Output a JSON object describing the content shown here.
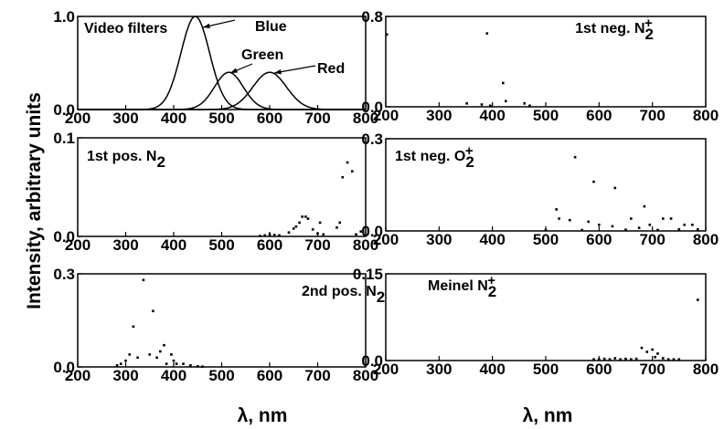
{
  "figure": {
    "ylabel": "Intensity, arbitrary units",
    "xlabel": "λ, nm"
  },
  "chart_data": [
    {
      "id": "video",
      "type": "line",
      "label_parts": [
        {
          "t": "Video filters"
        }
      ],
      "x_ticks": [
        200,
        300,
        400,
        500,
        600,
        700,
        800
      ],
      "xlim": [
        200,
        800
      ],
      "y_ticks": [
        "0.0",
        "1.0"
      ],
      "ylim": [
        0,
        1.0
      ],
      "series": [
        {
          "name": "Blue",
          "center": 445,
          "width": 30,
          "peak": 1.0
        },
        {
          "name": "Green",
          "center": 515,
          "width": 30,
          "peak": 0.4
        },
        {
          "name": "Red",
          "center": 600,
          "width": 35,
          "peak": 0.4
        }
      ]
    },
    {
      "id": "n2p",
      "type": "scatter",
      "label_parts": [
        {
          "t": "1st neg. N"
        },
        {
          "t": "2",
          "sub": true
        },
        {
          "t": "+",
          "sup": true
        }
      ],
      "x_ticks": [
        200,
        300,
        400,
        500,
        600,
        700,
        800
      ],
      "xlim": [
        200,
        800
      ],
      "y_ticks": [
        "0.0",
        "0.8"
      ],
      "ylim": [
        0,
        0.8
      ],
      "points": [
        [
          202,
          0.64
        ],
        [
          352,
          0.03
        ],
        [
          380,
          0.02
        ],
        [
          390,
          0.65
        ],
        [
          396,
          0.01
        ],
        [
          420,
          0.21
        ],
        [
          425,
          0.05
        ],
        [
          460,
          0.03
        ],
        [
          470,
          0.01
        ]
      ]
    },
    {
      "id": "n2_1p",
      "type": "scatter",
      "label_parts": [
        {
          "t": "1st pos. N"
        },
        {
          "t": "2",
          "sub": true
        }
      ],
      "x_ticks": [
        200,
        300,
        400,
        500,
        600,
        700,
        800
      ],
      "xlim": [
        200,
        800
      ],
      "y_ticks": [
        "0.0",
        "0.1"
      ],
      "ylim": [
        0,
        0.1
      ],
      "points": [
        [
          580,
          0.0005
        ],
        [
          590,
          0.001
        ],
        [
          600,
          0.002
        ],
        [
          610,
          0.0015
        ],
        [
          620,
          0.001
        ],
        [
          640,
          0.004
        ],
        [
          650,
          0.008
        ],
        [
          655,
          0.01
        ],
        [
          662,
          0.014
        ],
        [
          668,
          0.02
        ],
        [
          675,
          0.02
        ],
        [
          680,
          0.018
        ],
        [
          690,
          0.007
        ],
        [
          700,
          0.003
        ],
        [
          705,
          0.014
        ],
        [
          712,
          0.002
        ],
        [
          740,
          0.009
        ],
        [
          746,
          0.014
        ],
        [
          752,
          0.06
        ],
        [
          762,
          0.075
        ],
        [
          772,
          0.066
        ],
        [
          780,
          0.002
        ],
        [
          790,
          0.005
        ]
      ]
    },
    {
      "id": "o2p",
      "type": "scatter",
      "label_parts": [
        {
          "t": "1st neg. O"
        },
        {
          "t": "2",
          "sub": true
        },
        {
          "t": "+",
          "sup": true
        }
      ],
      "x_ticks": [
        200,
        300,
        400,
        500,
        600,
        700,
        800
      ],
      "xlim": [
        200,
        800
      ],
      "y_ticks": [
        "0.0",
        "0.3"
      ],
      "ylim": [
        0,
        0.3
      ],
      "points": [
        [
          500,
          0.003
        ],
        [
          520,
          0.07
        ],
        [
          525,
          0.04
        ],
        [
          545,
          0.035
        ],
        [
          555,
          0.24
        ],
        [
          568,
          0.003
        ],
        [
          580,
          0.03
        ],
        [
          590,
          0.16
        ],
        [
          600,
          0.02
        ],
        [
          625,
          0.015
        ],
        [
          630,
          0.14
        ],
        [
          650,
          0.004
        ],
        [
          660,
          0.04
        ],
        [
          675,
          0.01
        ],
        [
          685,
          0.08
        ],
        [
          695,
          0.02
        ],
        [
          710,
          0.003
        ],
        [
          720,
          0.04
        ],
        [
          735,
          0.04
        ],
        [
          750,
          0.005
        ],
        [
          760,
          0.02
        ],
        [
          775,
          0.02
        ],
        [
          785,
          0.005
        ]
      ]
    },
    {
      "id": "n2_2p",
      "type": "scatter",
      "label_parts": [
        {
          "t": "2nd pos. N"
        },
        {
          "t": "2",
          "sub": true
        }
      ],
      "x_ticks": [
        200,
        300,
        400,
        500,
        600,
        700,
        800
      ],
      "xlim": [
        200,
        800
      ],
      "y_ticks": [
        "0.0",
        "0.3"
      ],
      "ylim": [
        0,
        0.3
      ],
      "points": [
        [
          282,
          0.005
        ],
        [
          290,
          0.01
        ],
        [
          300,
          0.02
        ],
        [
          308,
          0.04
        ],
        [
          316,
          0.13
        ],
        [
          325,
          0.03
        ],
        [
          337,
          0.28
        ],
        [
          350,
          0.04
        ],
        [
          357,
          0.18
        ],
        [
          365,
          0.03
        ],
        [
          372,
          0.05
        ],
        [
          380,
          0.07
        ],
        [
          385,
          0.01
        ],
        [
          395,
          0.04
        ],
        [
          400,
          0.02
        ],
        [
          406,
          0.01
        ],
        [
          420,
          0.01
        ],
        [
          435,
          0.005
        ],
        [
          450,
          0.002
        ],
        [
          460,
          0.001
        ]
      ]
    },
    {
      "id": "meinel",
      "type": "scatter",
      "label_parts": [
        {
          "t": "Meinel N"
        },
        {
          "t": "2",
          "sub": true
        },
        {
          "t": "+",
          "sup": true
        }
      ],
      "x_ticks": [
        200,
        300,
        400,
        500,
        600,
        700,
        800
      ],
      "xlim": [
        200,
        800
      ],
      "y_ticks": [
        "0.0",
        "0.15"
      ],
      "ylim": [
        0,
        0.15
      ],
      "points": [
        [
          590,
          0.002
        ],
        [
          600,
          0.002
        ],
        [
          610,
          0.003
        ],
        [
          620,
          0.002
        ],
        [
          630,
          0.004
        ],
        [
          640,
          0.002
        ],
        [
          650,
          0.003
        ],
        [
          660,
          0.002
        ],
        [
          670,
          0.003
        ],
        [
          680,
          0.022
        ],
        [
          690,
          0.015
        ],
        [
          700,
          0.019
        ],
        [
          705,
          0.006
        ],
        [
          710,
          0.012
        ],
        [
          720,
          0.004
        ],
        [
          730,
          0.002
        ],
        [
          740,
          0.002
        ],
        [
          750,
          0.002
        ],
        [
          785,
          0.105
        ]
      ]
    }
  ]
}
